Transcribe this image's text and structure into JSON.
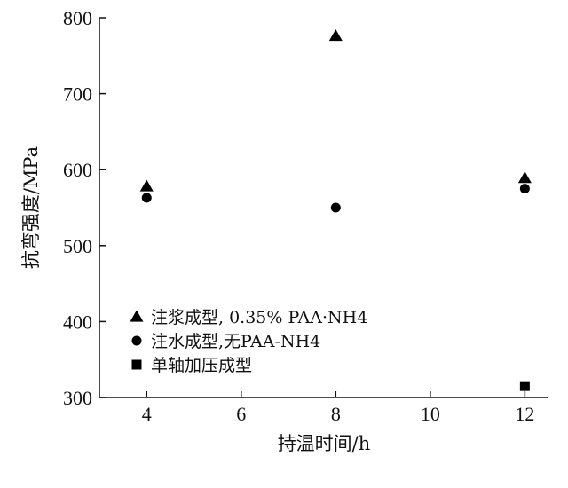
{
  "chart_data": {
    "type": "scatter",
    "xlabel": "持温时间/h",
    "ylabel": "抗弯强度/MPa",
    "xlim": [
      3,
      12.5
    ],
    "ylim": [
      300,
      800
    ],
    "xticks": [
      4,
      6,
      8,
      10,
      12
    ],
    "yticks": [
      300,
      400,
      500,
      600,
      700,
      800
    ],
    "grid": false,
    "legend_position": "bottom-left",
    "series": [
      {
        "name": "注浆成型, 0.35% PAA·NH4",
        "marker": "triangle",
        "x": [
          4,
          8,
          12
        ],
        "y": [
          578,
          776,
          589
        ]
      },
      {
        "name": "注水成型,无PAA-NH4",
        "marker": "circle",
        "x": [
          4,
          8,
          12
        ],
        "y": [
          563,
          550,
          575
        ]
      },
      {
        "name": "单轴加压成型",
        "marker": "square",
        "x": [
          12
        ],
        "y": [
          315
        ]
      }
    ]
  }
}
